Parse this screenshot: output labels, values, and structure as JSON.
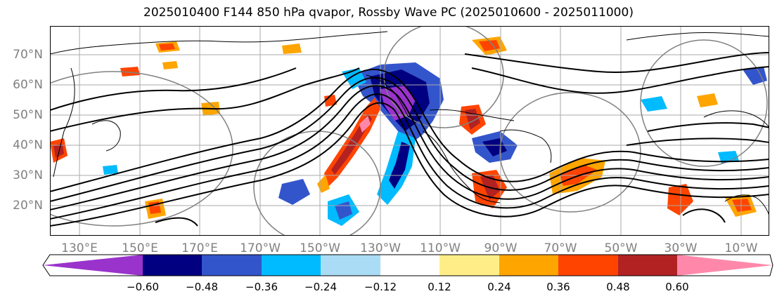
{
  "title": "2025010400 F144 850 hPa qvapor, Rossby Wave PC (2025010600 - 2025011000)",
  "lat_labels": [
    "70°N",
    "60°N",
    "50°N",
    "40°N",
    "30°N",
    "20°N"
  ],
  "lon_labels": [
    "130°E",
    "150°E",
    "170°E",
    "170°W",
    "150°W",
    "130°W",
    "110°W",
    "90°W",
    "70°W",
    "50°W",
    "30°W",
    "10°W"
  ],
  "colorbar": {
    "ticks": [
      "−0.60",
      "−0.48",
      "−0.36",
      "−0.24",
      "−0.12",
      "0.12",
      "0.24",
      "0.36",
      "0.48",
      "0.60"
    ],
    "colors": [
      "#9933cc",
      "#000080",
      "#3355cc",
      "#00bbff",
      "#aaddf5",
      "#ffffff",
      "#ffee88",
      "#ffa500",
      "#ff4400",
      "#b22222",
      "#ff88aa"
    ]
  }
}
